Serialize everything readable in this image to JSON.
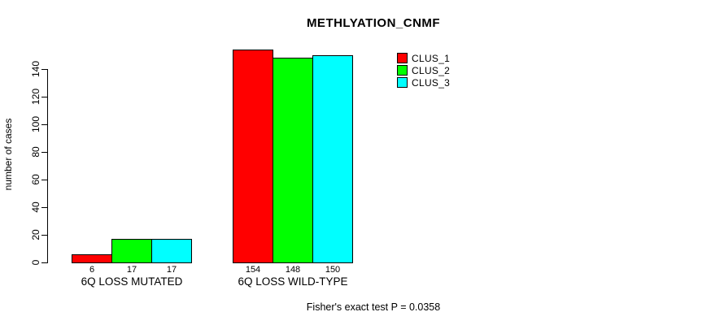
{
  "chart_data": {
    "type": "bar",
    "title": "METHLYATION_CNMF",
    "ylabel": "number of cases",
    "xlabel": "",
    "ylim": [
      0,
      140
    ],
    "yticks": [
      0,
      20,
      40,
      60,
      80,
      100,
      120,
      140
    ],
    "grid": false,
    "legend_position": "right",
    "categories": [
      "6Q LOSS MUTATED",
      "6Q LOSS WILD-TYPE"
    ],
    "series": [
      {
        "name": "CLUS_1",
        "color": "#FF0000",
        "values": [
          6,
          154
        ]
      },
      {
        "name": "CLUS_2",
        "color": "#00FF00",
        "values": [
          17,
          148
        ]
      },
      {
        "name": "CLUS_3",
        "color": "#00FFFF",
        "values": [
          17,
          150
        ]
      }
    ],
    "bar_value_labels": [
      [
        "6",
        "17",
        "17"
      ],
      [
        "154",
        "148",
        "150"
      ]
    ],
    "annotation": "Fisher's exact test P = 0.0358",
    "bar_border_color": "#000000",
    "text_color": "#000000",
    "background_color": "#FFFFFF"
  }
}
